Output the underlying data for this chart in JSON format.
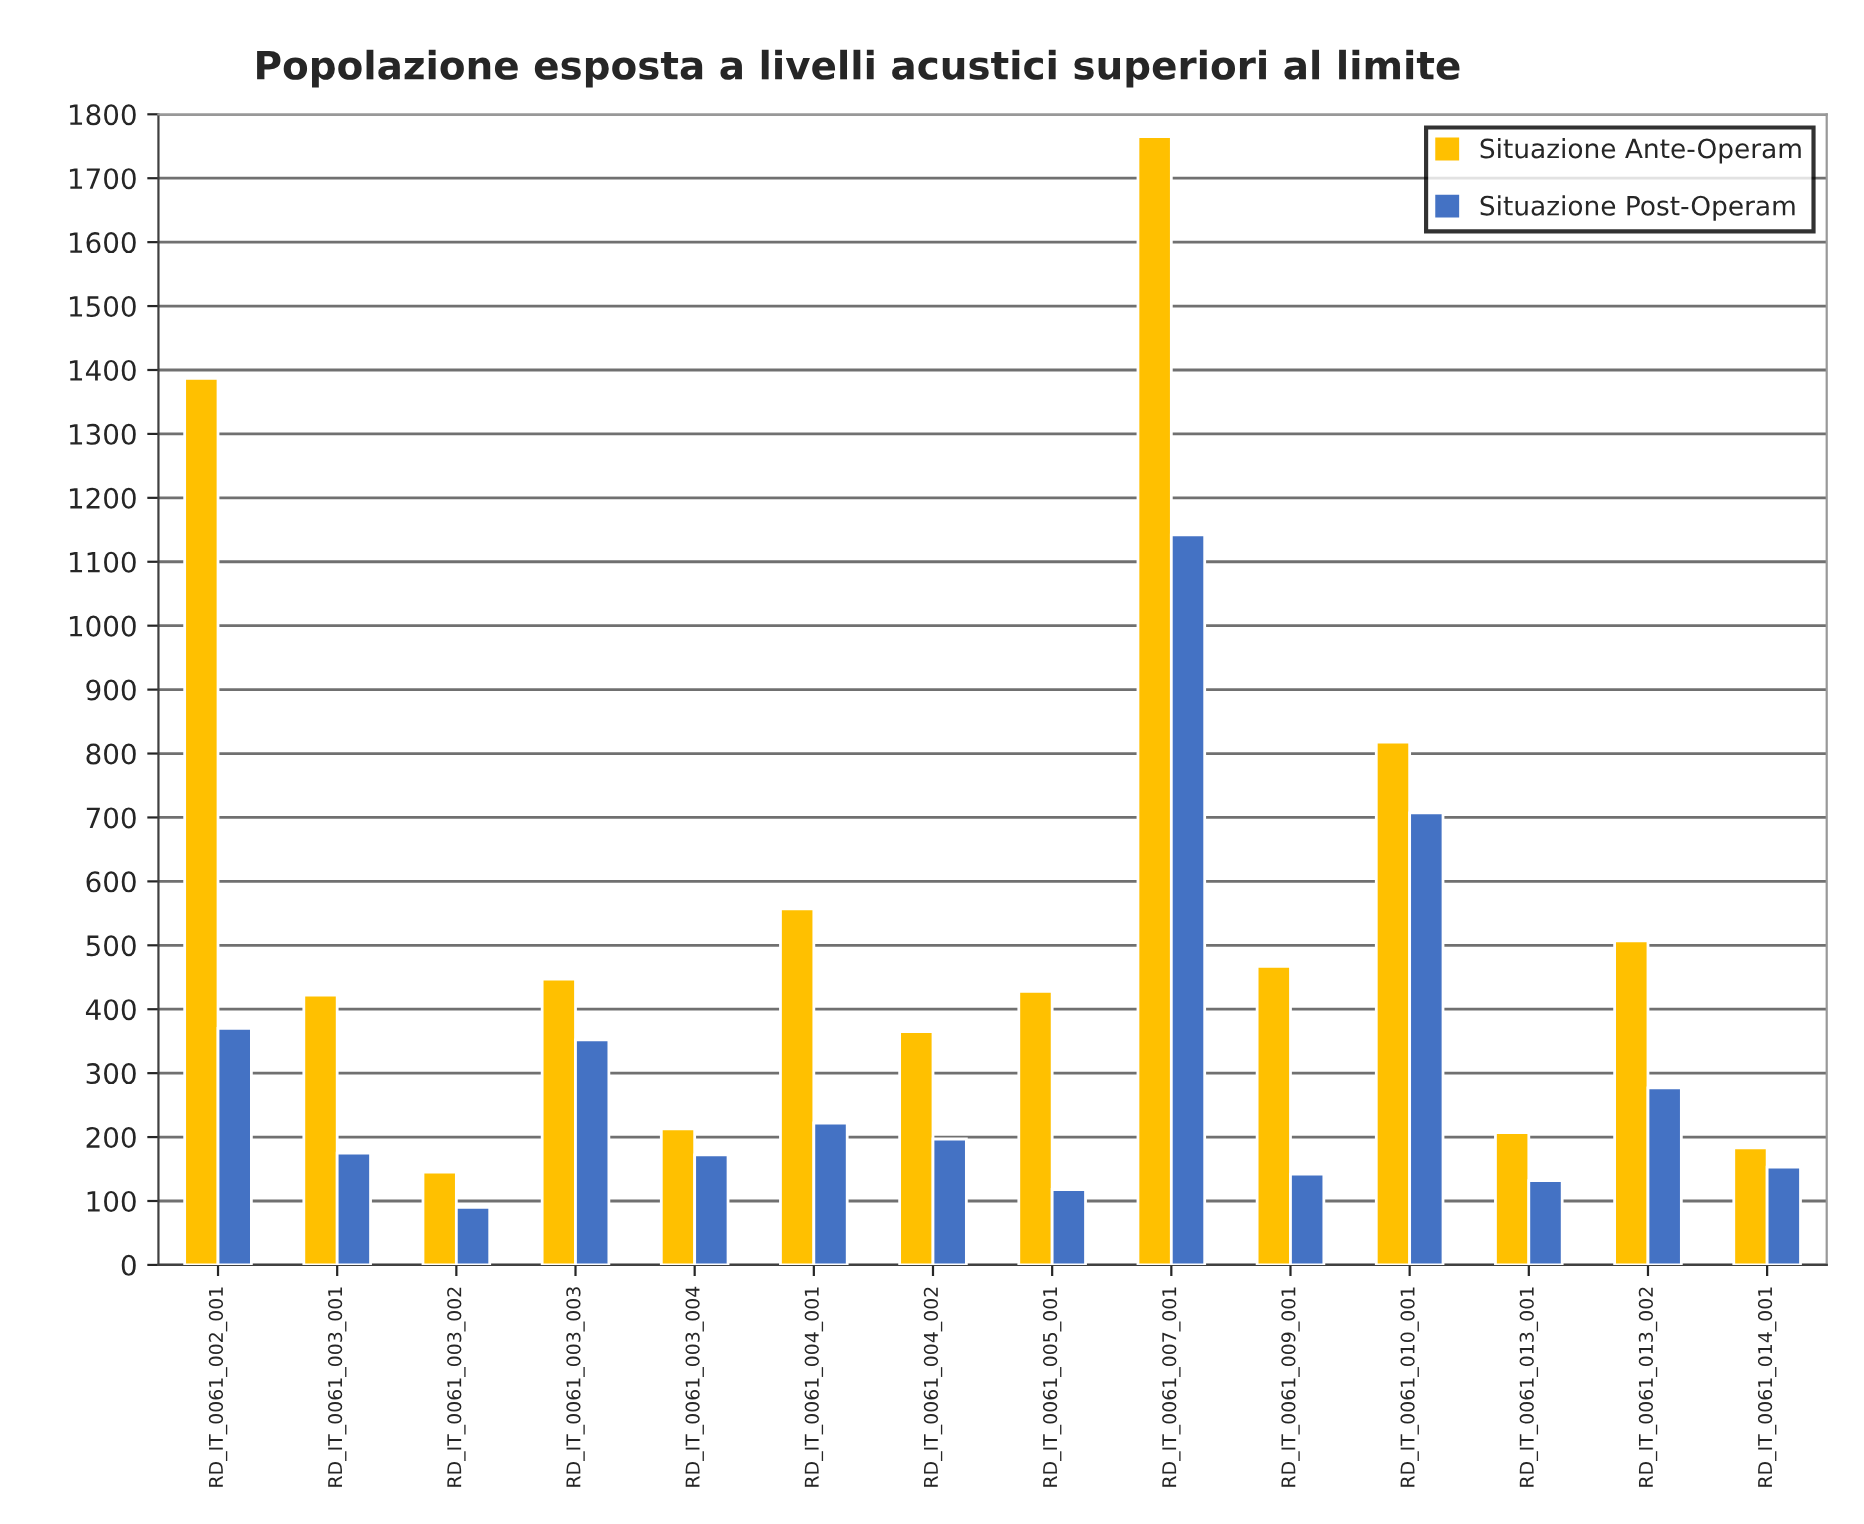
{
  "chart_data": {
    "type": "bar",
    "title": "Popolazione esposta a livelli acustici superiori al limite",
    "categories": [
      "RD_IT_0061_002_001",
      "RD_IT_0061_003_001",
      "RD_IT_0061_003_002",
      "RD_IT_0061_003_003",
      "RD_IT_0061_003_004",
      "RD_IT_0061_004_001",
      "RD_IT_0061_004_002",
      "RD_IT_0061_005_001",
      "RD_IT_0061_007_001",
      "RD_IT_0061_009_001",
      "RD_IT_0061_010_001",
      "RD_IT_0061_013_001",
      "RD_IT_0061_013_002",
      "RD_IT_0061_014_001"
    ],
    "series": [
      {
        "name": "Situazione Ante-Operam",
        "color": "#ffc000",
        "values": [
          1387,
          422,
          145,
          447,
          213,
          557,
          365,
          428,
          1765,
          467,
          818,
          207,
          507,
          183
        ]
      },
      {
        "name": "Situazione Post-Operam",
        "color": "#4472c4",
        "values": [
          370,
          175,
          90,
          352,
          172,
          222,
          197,
          118,
          1142,
          142,
          707,
          132,
          277,
          153
        ]
      }
    ],
    "ylim": [
      0,
      1800
    ],
    "yticks": [
      0,
      100,
      200,
      300,
      400,
      500,
      600,
      700,
      800,
      900,
      1000,
      1100,
      1200,
      1300,
      1400,
      1500,
      1600,
      1700,
      1800
    ],
    "grid": "y",
    "legend": "top right"
  }
}
